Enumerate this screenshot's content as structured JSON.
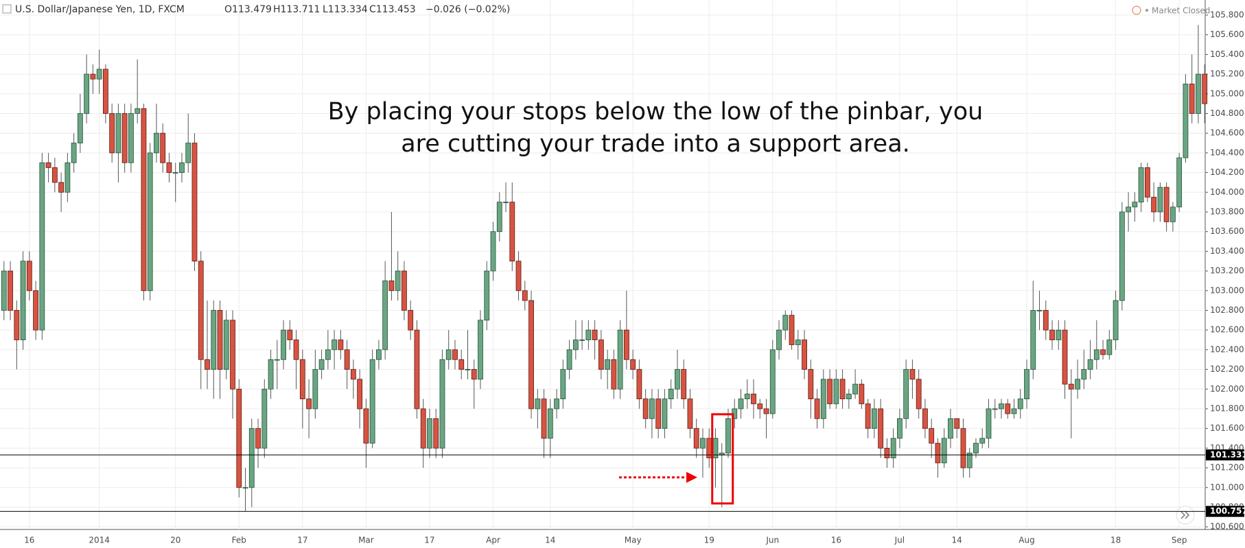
{
  "header": {
    "symbol": "U.S. Dollar/Japanese Yen, 1D, FXCM",
    "open": "O113.479",
    "high": "H113.711",
    "low": "L113.334",
    "close": "C113.453",
    "change": "−0.026 (−0.02%)",
    "status": "Market Closed"
  },
  "chart_data": {
    "type": "candlestick",
    "annotation": [
      "By placing your stops below the low of the pinbar, you",
      "are cutting your trade into a support area."
    ],
    "up_color": "#6ba583",
    "down_color": "#d75442",
    "grid": true,
    "ylim": [
      100.52,
      105.9
    ],
    "yticks": [
      {
        "value": 100.6,
        "label": "100.600"
      },
      {
        "value": 100.8,
        "label": "100.800"
      },
      {
        "value": 101.0,
        "label": "101.000"
      },
      {
        "value": 101.2,
        "label": "101.200"
      },
      {
        "value": 101.4,
        "label": "101.400"
      },
      {
        "value": 101.6,
        "label": "101.600"
      },
      {
        "value": 101.8,
        "label": "101.800"
      },
      {
        "value": 102.0,
        "label": "102.000"
      },
      {
        "value": 102.2,
        "label": "102.200"
      },
      {
        "value": 102.4,
        "label": "102.400"
      },
      {
        "value": 102.6,
        "label": "102.600"
      },
      {
        "value": 102.8,
        "label": "102.800"
      },
      {
        "value": 103.0,
        "label": "103.000"
      },
      {
        "value": 103.2,
        "label": "103.200"
      },
      {
        "value": 103.4,
        "label": "103.400"
      },
      {
        "value": 103.6,
        "label": "103.600"
      },
      {
        "value": 103.8,
        "label": "103.800"
      },
      {
        "value": 104.0,
        "label": "104.000"
      },
      {
        "value": 104.2,
        "label": "104.200"
      },
      {
        "value": 104.4,
        "label": "104.400"
      },
      {
        "value": 104.6,
        "label": "104.600"
      },
      {
        "value": 104.8,
        "label": "104.800"
      },
      {
        "value": 105.0,
        "label": "105.000"
      },
      {
        "value": 105.2,
        "label": "105.200"
      },
      {
        "value": 105.4,
        "label": "105.400"
      },
      {
        "value": 105.6,
        "label": "105.600"
      },
      {
        "value": 105.8,
        "label": "105.800"
      }
    ],
    "hlines": [
      101.331,
      100.757
    ],
    "categories": [
      null,
      null,
      null,
      null,
      "16",
      null,
      null,
      null,
      null,
      null,
      null,
      null,
      null,
      null,
      null,
      "2014",
      null,
      null,
      null,
      null,
      null,
      null,
      null,
      null,
      null,
      null,
      null,
      "20",
      null,
      null,
      null,
      null,
      null,
      null,
      null,
      null,
      null,
      "Feb",
      null,
      null,
      null,
      null,
      null,
      null,
      null,
      null,
      null,
      "17",
      null,
      null,
      null,
      null,
      null,
      null,
      null,
      null,
      null,
      "Mar",
      null,
      null,
      null,
      null,
      null,
      null,
      null,
      null,
      null,
      "17",
      null,
      null,
      null,
      null,
      null,
      null,
      null,
      null,
      null,
      "Apr",
      null,
      null,
      null,
      null,
      null,
      null,
      null,
      null,
      "14",
      null,
      null,
      null,
      null,
      null,
      null,
      null,
      null,
      null,
      null,
      null,
      null,
      "May",
      null,
      null,
      null,
      null,
      null,
      null,
      null,
      null,
      null,
      null,
      null,
      "19",
      null,
      null,
      null,
      null,
      null,
      null,
      null,
      null,
      null,
      "Jun",
      null,
      null,
      null,
      null,
      null,
      null,
      null,
      null,
      null,
      "16",
      null,
      null,
      null,
      null,
      null,
      null,
      null,
      null,
      null,
      "Jul",
      null,
      null,
      null,
      null,
      null,
      null,
      null,
      null,
      "14",
      null,
      null,
      null,
      null,
      null,
      null,
      null,
      null,
      null,
      null,
      "Aug",
      null,
      null,
      null,
      null,
      null,
      null,
      null,
      null,
      null,
      null,
      null,
      null,
      null,
      "18",
      null,
      null,
      null,
      null,
      null,
      null,
      null,
      null,
      null,
      "Sep",
      null,
      null,
      null,
      null
    ],
    "open": [
      102.8,
      103.2,
      102.8,
      102.5,
      103.3,
      103.0,
      102.6,
      104.3,
      104.25,
      104.1,
      104.0,
      104.3,
      104.5,
      104.8,
      105.2,
      105.15,
      105.25,
      104.8,
      104.4,
      104.8,
      104.3,
      104.8,
      104.85,
      103.0,
      104.4,
      104.6,
      104.3,
      104.2,
      104.2,
      104.3,
      104.5,
      103.3,
      102.3,
      102.2,
      102.8,
      102.2,
      102.7,
      102.0,
      101.0,
      101.0,
      101.6,
      101.4,
      102.0,
      102.3,
      102.3,
      102.6,
      102.5,
      102.3,
      101.9,
      101.8,
      102.2,
      102.3,
      102.4,
      102.5,
      102.4,
      102.2,
      102.1,
      101.8,
      101.45,
      102.3,
      102.4,
      103.1,
      103.0,
      103.2,
      102.8,
      102.6,
      101.8,
      101.4,
      101.7,
      101.4,
      102.3,
      102.4,
      102.3,
      102.2,
      102.2,
      102.1,
      102.7,
      103.2,
      103.6,
      103.9,
      103.9,
      103.3,
      103.0,
      102.9,
      101.8,
      101.9,
      101.5,
      101.8,
      101.9,
      102.2,
      102.4,
      102.5,
      102.5,
      102.6,
      102.5,
      102.2,
      102.3,
      102.0,
      102.6,
      102.3,
      102.2,
      101.9,
      101.7,
      101.9,
      101.6,
      101.9,
      102.0,
      102.2,
      101.9,
      101.6,
      101.4,
      101.5,
      101.3,
      101.33,
      101.35,
      101.7,
      101.8,
      101.9,
      101.95,
      101.85,
      101.8,
      101.75,
      102.4,
      102.6,
      102.75,
      102.45,
      102.5,
      102.2,
      101.9,
      101.7,
      102.1,
      101.85,
      102.1,
      101.9,
      101.95,
      102.05,
      101.85,
      101.6,
      101.8,
      101.4,
      101.3,
      101.5,
      101.7,
      102.2,
      102.1,
      101.8,
      101.6,
      101.45,
      101.25,
      101.5,
      101.7,
      101.6,
      101.2,
      101.35,
      101.45,
      101.5,
      101.8,
      101.8,
      101.85,
      101.75,
      101.8,
      101.9,
      102.2,
      102.8,
      102.8,
      102.6,
      102.5,
      102.6,
      102.05,
      102.0,
      102.1,
      102.2,
      102.3,
      102.4,
      102.35,
      102.5,
      102.9,
      103.8,
      103.85,
      103.9,
      104.25,
      103.95,
      103.8,
      104.05,
      103.7,
      103.85,
      104.35,
      105.1,
      104.8,
      105.2
    ],
    "high": [
      103.3,
      103.3,
      102.9,
      103.4,
      103.4,
      103.1,
      104.4,
      104.4,
      104.35,
      104.2,
      104.4,
      104.6,
      105.0,
      105.4,
      105.3,
      105.45,
      105.3,
      104.9,
      104.9,
      104.9,
      104.9,
      105.35,
      104.9,
      104.5,
      104.9,
      104.7,
      104.4,
      104.3,
      104.4,
      104.8,
      104.6,
      103.4,
      102.9,
      102.9,
      102.9,
      102.8,
      102.8,
      102.1,
      101.2,
      101.7,
      101.7,
      102.1,
      102.4,
      102.5,
      102.7,
      102.7,
      102.6,
      102.4,
      102.1,
      102.4,
      102.4,
      102.6,
      102.6,
      102.6,
      102.5,
      102.3,
      102.2,
      101.9,
      102.4,
      102.5,
      103.3,
      103.8,
      103.4,
      103.3,
      102.9,
      102.7,
      101.9,
      101.8,
      101.8,
      102.4,
      102.6,
      102.5,
      102.4,
      102.6,
      102.3,
      102.8,
      103.3,
      103.7,
      104.0,
      104.1,
      104.1,
      103.4,
      103.1,
      103.0,
      102.0,
      102.0,
      101.9,
      102.0,
      102.3,
      102.5,
      102.7,
      102.7,
      102.7,
      102.7,
      102.6,
      102.4,
      102.4,
      102.7,
      103.0,
      102.4,
      102.3,
      102.0,
      102.0,
      102.0,
      102.0,
      102.1,
      102.4,
      102.3,
      102.0,
      101.7,
      101.6,
      101.6,
      101.6,
      101.45,
      101.8,
      101.9,
      102.0,
      102.1,
      102.1,
      101.9,
      101.9,
      102.5,
      102.7,
      102.8,
      102.8,
      102.6,
      102.6,
      102.3,
      102.0,
      102.2,
      102.2,
      102.2,
      102.2,
      102.0,
      102.2,
      102.1,
      101.9,
      101.9,
      101.9,
      101.5,
      101.6,
      101.8,
      102.3,
      102.3,
      102.2,
      101.9,
      101.7,
      101.5,
      101.6,
      101.8,
      101.7,
      101.7,
      101.4,
      101.5,
      101.6,
      101.9,
      101.9,
      101.9,
      101.9,
      101.9,
      102.0,
      102.3,
      103.1,
      103.0,
      102.9,
      102.7,
      102.7,
      102.7,
      102.2,
      102.3,
      102.4,
      102.5,
      102.7,
      102.5,
      102.6,
      103.0,
      103.9,
      104.0,
      104.0,
      104.3,
      104.3,
      104.1,
      104.1,
      104.1,
      103.9,
      104.4,
      105.2,
      105.4,
      105.7,
      105.3
    ],
    "low": [
      102.7,
      102.7,
      102.2,
      102.4,
      102.9,
      102.5,
      102.5,
      104.1,
      104.0,
      103.8,
      103.9,
      104.2,
      104.4,
      104.7,
      105.0,
      105.0,
      104.7,
      104.3,
      104.1,
      104.2,
      104.2,
      104.7,
      102.9,
      102.9,
      104.3,
      104.2,
      104.1,
      103.9,
      104.1,
      104.2,
      103.2,
      102.0,
      102.0,
      101.9,
      101.9,
      102.1,
      101.7,
      100.9,
      100.76,
      100.8,
      101.2,
      101.3,
      101.9,
      102.0,
      102.2,
      102.4,
      102.0,
      101.6,
      101.5,
      101.7,
      102.1,
      102.2,
      102.2,
      102.3,
      102.0,
      101.9,
      101.6,
      101.2,
      101.4,
      102.2,
      102.3,
      102.9,
      102.9,
      102.7,
      102.5,
      101.7,
      101.2,
      101.3,
      101.3,
      101.3,
      102.2,
      102.2,
      102.1,
      102.1,
      101.8,
      102.0,
      102.6,
      103.1,
      103.5,
      103.8,
      103.2,
      102.9,
      102.8,
      101.7,
      101.6,
      101.3,
      101.3,
      101.7,
      101.8,
      102.1,
      102.3,
      102.4,
      102.4,
      102.3,
      102.1,
      102.0,
      101.9,
      101.9,
      102.2,
      102.1,
      101.8,
      101.6,
      101.5,
      101.5,
      101.5,
      101.8,
      101.9,
      101.8,
      101.5,
      101.3,
      101.1,
      101.2,
      101.0,
      100.8,
      101.3,
      101.6,
      101.7,
      101.8,
      101.7,
      101.7,
      101.5,
      101.7,
      102.3,
      102.5,
      102.4,
      102.3,
      102.1,
      101.7,
      101.6,
      101.6,
      101.8,
      101.8,
      101.8,
      101.8,
      101.9,
      101.8,
      101.5,
      101.5,
      101.3,
      101.2,
      101.2,
      101.4,
      101.6,
      101.9,
      101.7,
      101.5,
      101.3,
      101.1,
      101.2,
      101.4,
      101.5,
      101.1,
      101.1,
      101.3,
      101.4,
      101.4,
      101.7,
      101.7,
      101.7,
      101.7,
      101.7,
      101.8,
      102.1,
      102.6,
      102.5,
      102.4,
      102.4,
      101.9,
      101.5,
      101.9,
      102.0,
      102.1,
      102.2,
      102.3,
      102.3,
      102.4,
      102.8,
      103.6,
      103.7,
      103.8,
      103.9,
      103.7,
      103.7,
      103.6,
      103.6,
      103.8,
      104.3,
      104.7,
      104.7,
      104.7
    ],
    "close": [
      103.2,
      102.8,
      102.5,
      103.3,
      103.0,
      102.6,
      104.3,
      104.25,
      104.1,
      104.0,
      104.3,
      104.5,
      104.8,
      105.2,
      105.15,
      105.25,
      104.8,
      104.4,
      104.8,
      104.3,
      104.8,
      104.85,
      103.0,
      104.4,
      104.6,
      104.3,
      104.2,
      104.2,
      104.3,
      104.5,
      103.3,
      102.3,
      102.2,
      102.8,
      102.2,
      102.7,
      102.0,
      101.0,
      101.0,
      101.6,
      101.4,
      102.0,
      102.3,
      102.3,
      102.6,
      102.5,
      102.3,
      101.9,
      101.8,
      102.2,
      102.3,
      102.4,
      102.5,
      102.4,
      102.2,
      102.1,
      101.8,
      101.45,
      102.3,
      102.4,
      103.1,
      103.0,
      103.2,
      102.8,
      102.6,
      101.8,
      101.4,
      101.7,
      101.4,
      102.3,
      102.4,
      102.3,
      102.2,
      102.2,
      102.1,
      102.7,
      103.2,
      103.6,
      103.9,
      103.9,
      103.3,
      103.0,
      102.9,
      101.8,
      101.9,
      101.5,
      101.8,
      101.9,
      102.2,
      102.4,
      102.5,
      102.5,
      102.6,
      102.5,
      102.2,
      102.3,
      102.0,
      102.6,
      102.3,
      102.2,
      101.9,
      101.7,
      101.9,
      101.6,
      101.9,
      102.0,
      102.2,
      101.9,
      101.6,
      101.4,
      101.5,
      101.3,
      101.5,
      101.35,
      101.7,
      101.8,
      101.9,
      101.95,
      101.85,
      101.8,
      101.75,
      102.4,
      102.6,
      102.75,
      102.45,
      102.5,
      102.2,
      101.9,
      101.7,
      102.1,
      101.85,
      102.1,
      101.9,
      101.95,
      102.05,
      101.85,
      101.6,
      101.8,
      101.4,
      101.3,
      101.5,
      101.7,
      102.2,
      102.1,
      101.8,
      101.6,
      101.45,
      101.25,
      101.5,
      101.7,
      101.6,
      101.2,
      101.35,
      101.45,
      101.5,
      101.8,
      101.8,
      101.85,
      101.75,
      101.8,
      101.9,
      102.2,
      102.8,
      102.8,
      102.6,
      102.5,
      102.6,
      102.05,
      102.0,
      102.1,
      102.2,
      102.3,
      102.4,
      102.35,
      102.5,
      102.9,
      103.8,
      103.85,
      103.9,
      104.25,
      103.95,
      103.8,
      104.05,
      103.7,
      103.85,
      104.35,
      105.1,
      104.8,
      105.2,
      104.9
    ]
  }
}
